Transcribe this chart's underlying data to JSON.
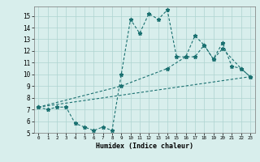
{
  "line1_x": [
    0,
    1,
    2,
    3,
    4,
    5,
    6,
    7,
    8,
    9,
    10,
    11,
    12,
    13,
    14,
    15,
    16,
    17,
    18,
    19,
    20,
    21,
    22,
    23
  ],
  "line1_y": [
    7.2,
    7.0,
    7.2,
    7.2,
    5.8,
    5.5,
    5.2,
    5.5,
    5.2,
    10.0,
    14.7,
    13.5,
    15.2,
    14.7,
    15.5,
    11.5,
    11.5,
    13.3,
    12.5,
    11.3,
    12.7,
    10.7,
    10.5,
    9.8
  ],
  "line2_x": [
    0,
    9,
    14,
    16,
    17,
    18,
    19,
    20,
    22,
    23
  ],
  "line2_y": [
    7.2,
    9.0,
    10.5,
    11.5,
    11.5,
    12.5,
    11.3,
    12.2,
    10.5,
    9.8
  ],
  "line3_x": [
    0,
    23
  ],
  "line3_y": [
    7.2,
    9.8
  ],
  "line_color": "#1a7070",
  "bg_color": "#d8eeec",
  "grid_color": "#aed4d0",
  "xlabel": "Humidex (Indice chaleur)",
  "xlim": [
    -0.5,
    23.5
  ],
  "ylim": [
    5,
    15.8
  ],
  "yticks": [
    5,
    6,
    7,
    8,
    9,
    10,
    11,
    12,
    13,
    14,
    15
  ],
  "xticks": [
    0,
    1,
    2,
    3,
    4,
    5,
    6,
    7,
    8,
    9,
    10,
    11,
    12,
    13,
    14,
    15,
    16,
    17,
    18,
    19,
    20,
    21,
    22,
    23
  ]
}
